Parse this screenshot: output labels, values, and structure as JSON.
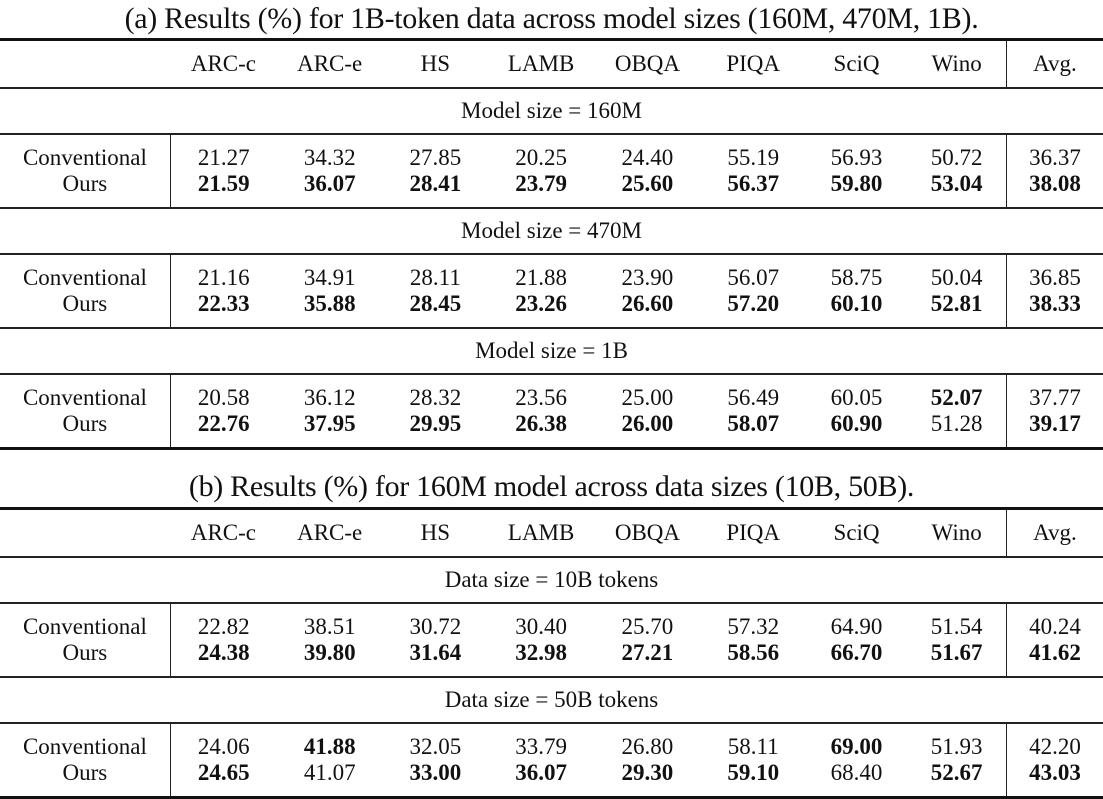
{
  "tables": [
    {
      "caption": "(a) Results (%) for 1B-token data across model sizes (160M, 470M, 1B).",
      "columns": [
        "ARC-c",
        "ARC-e",
        "HS",
        "LAMB",
        "OBQA",
        "PIQA",
        "SciQ",
        "Wino",
        "Avg."
      ],
      "sections": [
        {
          "label": "Model size = 160M",
          "rows": [
            {
              "method": "Conventional",
              "values": [
                "21.27",
                "34.32",
                "27.85",
                "20.25",
                "24.40",
                "55.19",
                "56.93",
                "50.72",
                "36.37"
              ],
              "bold": [
                false,
                false,
                false,
                false,
                false,
                false,
                false,
                false,
                false
              ]
            },
            {
              "method": "Ours",
              "values": [
                "21.59",
                "36.07",
                "28.41",
                "23.79",
                "25.60",
                "56.37",
                "59.80",
                "53.04",
                "38.08"
              ],
              "bold": [
                true,
                true,
                true,
                true,
                true,
                true,
                true,
                true,
                true
              ]
            }
          ]
        },
        {
          "label": "Model size = 470M",
          "rows": [
            {
              "method": "Conventional",
              "values": [
                "21.16",
                "34.91",
                "28.11",
                "21.88",
                "23.90",
                "56.07",
                "58.75",
                "50.04",
                "36.85"
              ],
              "bold": [
                false,
                false,
                false,
                false,
                false,
                false,
                false,
                false,
                false
              ]
            },
            {
              "method": "Ours",
              "values": [
                "22.33",
                "35.88",
                "28.45",
                "23.26",
                "26.60",
                "57.20",
                "60.10",
                "52.81",
                "38.33"
              ],
              "bold": [
                true,
                true,
                true,
                true,
                true,
                true,
                true,
                true,
                true
              ]
            }
          ]
        },
        {
          "label": "Model size = 1B",
          "rows": [
            {
              "method": "Conventional",
              "values": [
                "20.58",
                "36.12",
                "28.32",
                "23.56",
                "25.00",
                "56.49",
                "60.05",
                "52.07",
                "37.77"
              ],
              "bold": [
                false,
                false,
                false,
                false,
                false,
                false,
                false,
                true,
                false
              ]
            },
            {
              "method": "Ours",
              "values": [
                "22.76",
                "37.95",
                "29.95",
                "26.38",
                "26.00",
                "58.07",
                "60.90",
                "51.28",
                "39.17"
              ],
              "bold": [
                true,
                true,
                true,
                true,
                true,
                true,
                true,
                false,
                true
              ]
            }
          ]
        }
      ]
    },
    {
      "caption": "(b) Results (%) for 160M model across data sizes (10B, 50B).",
      "columns": [
        "ARC-c",
        "ARC-e",
        "HS",
        "LAMB",
        "OBQA",
        "PIQA",
        "SciQ",
        "Wino",
        "Avg."
      ],
      "sections": [
        {
          "label": "Data size = 10B tokens",
          "rows": [
            {
              "method": "Conventional",
              "values": [
                "22.82",
                "38.51",
                "30.72",
                "30.40",
                "25.70",
                "57.32",
                "64.90",
                "51.54",
                "40.24"
              ],
              "bold": [
                false,
                false,
                false,
                false,
                false,
                false,
                false,
                false,
                false
              ]
            },
            {
              "method": "Ours",
              "values": [
                "24.38",
                "39.80",
                "31.64",
                "32.98",
                "27.21",
                "58.56",
                "66.70",
                "51.67",
                "41.62"
              ],
              "bold": [
                true,
                true,
                true,
                true,
                true,
                true,
                true,
                true,
                true
              ]
            }
          ]
        },
        {
          "label": "Data size = 50B tokens",
          "rows": [
            {
              "method": "Conventional",
              "values": [
                "24.06",
                "41.88",
                "32.05",
                "33.79",
                "26.80",
                "58.11",
                "69.00",
                "51.93",
                "42.20"
              ],
              "bold": [
                false,
                true,
                false,
                false,
                false,
                false,
                true,
                false,
                false
              ]
            },
            {
              "method": "Ours",
              "values": [
                "24.65",
                "41.07",
                "33.00",
                "36.07",
                "29.30",
                "59.10",
                "68.40",
                "52.67",
                "43.03"
              ],
              "bold": [
                true,
                false,
                true,
                true,
                true,
                true,
                false,
                true,
                true
              ]
            }
          ]
        }
      ]
    }
  ]
}
